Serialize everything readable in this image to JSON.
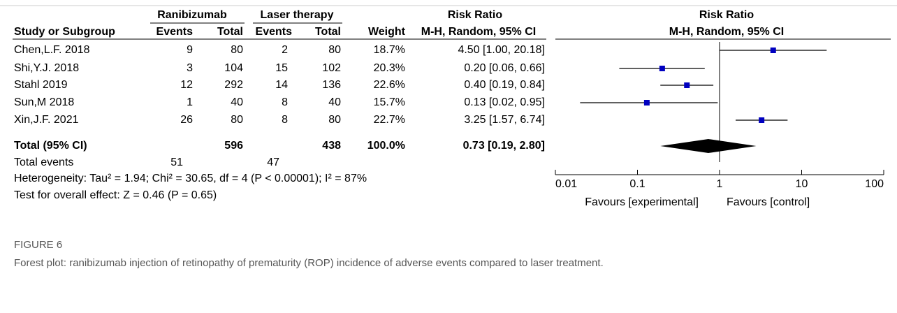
{
  "headers": {
    "group1": "Ranibizumab",
    "group2": "Laser therapy",
    "rr_table": "Risk Ratio",
    "rr_plot": "Risk Ratio",
    "study": "Study or Subgroup",
    "events1": "Events",
    "total1": "Total",
    "events2": "Events",
    "total2": "Total",
    "weight": "Weight",
    "method_table": "M-H, Random, 95% CI",
    "method_plot": "M-H, Random, 95% CI"
  },
  "studies": [
    {
      "name": "Chen,L.F. 2018",
      "e1": 9,
      "t1": 80,
      "e2": 2,
      "t2": 80,
      "weight": "18.7%",
      "ci_label": "4.50 [1.00, 20.18]",
      "rr": 4.5,
      "lo": 1.0,
      "hi": 20.18
    },
    {
      "name": "Shi,Y.J. 2018",
      "e1": 3,
      "t1": 104,
      "e2": 15,
      "t2": 102,
      "weight": "20.3%",
      "ci_label": "0.20 [0.06, 0.66]",
      "rr": 0.2,
      "lo": 0.06,
      "hi": 0.66
    },
    {
      "name": "Stahl 2019",
      "e1": 12,
      "t1": 292,
      "e2": 14,
      "t2": 136,
      "weight": "22.6%",
      "ci_label": "0.40 [0.19, 0.84]",
      "rr": 0.4,
      "lo": 0.19,
      "hi": 0.84
    },
    {
      "name": "Sun,M 2018",
      "e1": 1,
      "t1": 40,
      "e2": 8,
      "t2": 40,
      "weight": "15.7%",
      "ci_label": "0.13 [0.02, 0.95]",
      "rr": 0.13,
      "lo": 0.02,
      "hi": 0.95
    },
    {
      "name": "Xin,J.F. 2021",
      "e1": 26,
      "t1": 80,
      "e2": 8,
      "t2": 80,
      "weight": "22.7%",
      "ci_label": "3.25 [1.57, 6.74]",
      "rr": 3.25,
      "lo": 1.57,
      "hi": 6.74
    }
  ],
  "total": {
    "name": "Total (95% CI)",
    "t1": 596,
    "t2": 438,
    "weight": "100.0%",
    "ci_label": "0.73 [0.19, 2.80]",
    "rr": 0.73,
    "lo": 0.19,
    "hi": 2.8
  },
  "total_events": {
    "name": "Total events",
    "e1": 51,
    "e2": 47
  },
  "heterogeneity": "Heterogeneity: Tau² = 1.94; Chi² = 30.65, df = 4 (P < 0.00001); I² = 87%",
  "overall_effect": "Test for overall effect: Z = 0.46 (P = 0.65)",
  "axis": {
    "log": true,
    "xlim": [
      0.01,
      100
    ],
    "xticks": [
      0.01,
      0.1,
      1,
      10,
      100
    ],
    "left_label": "Favours [experimental]",
    "right_label": "Favours [control]",
    "color": "#0000c0"
  },
  "caption": {
    "label": "FIGURE 6",
    "text": "Forest plot: ranibizumab injection of retinopathy of prematurity (ROP) incidence of adverse events compared to laser treatment."
  }
}
